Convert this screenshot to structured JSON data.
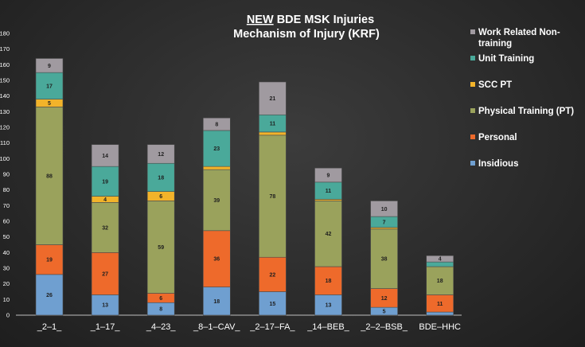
{
  "chart_data": {
    "type": "bar",
    "stacked": true,
    "title_emphasis": "NEW",
    "title_rest": " BDE MSK Injuries",
    "subtitle": "Mechanism of Injury (KRF)",
    "xlabel": "",
    "ylabel": "",
    "ylim": [
      0,
      180
    ],
    "ytick_step": 10,
    "grid": false,
    "legend_position": "right",
    "categories": [
      "_2–1_",
      "_1–17_",
      "_4–23_",
      "_8–1–CAV_",
      "_2–17–FA_",
      "_14–BEB_",
      "_2–2–BSB_",
      "BDE–HHC"
    ],
    "series": [
      {
        "name": "Insidious",
        "color": "#6f9fd0",
        "values": [
          26,
          13,
          8,
          18,
          15,
          13,
          5,
          2
        ],
        "labels": [
          "26",
          "13",
          "8",
          "18",
          "15",
          "13",
          "5",
          ""
        ]
      },
      {
        "name": "Personal",
        "color": "#ee6a2b",
        "values": [
          19,
          27,
          6,
          36,
          22,
          18,
          12,
          11
        ],
        "labels": [
          "19",
          "27",
          "6",
          "36",
          "22",
          "18",
          "12",
          "11"
        ]
      },
      {
        "name": "Physical Training (PT)",
        "color": "#9aa25c",
        "values": [
          88,
          32,
          59,
          39,
          78,
          42,
          38,
          18
        ],
        "labels": [
          "88",
          "32",
          "59",
          "39",
          "78",
          "42",
          "38",
          "18"
        ]
      },
      {
        "name": "SCC PT",
        "color": "#f2b32a",
        "values": [
          5,
          4,
          6,
          2,
          2,
          1,
          1,
          0
        ],
        "labels": [
          "5",
          "4",
          "6",
          "",
          "",
          "",
          "",
          ""
        ]
      },
      {
        "name": "Unit Training",
        "color": "#4aa99a",
        "values": [
          17,
          19,
          18,
          23,
          11,
          11,
          7,
          3
        ],
        "labels": [
          "17",
          "19",
          "18",
          "23",
          "11",
          "11",
          "7",
          ""
        ]
      },
      {
        "name": "Work Related Non-training",
        "color": "#a09aa0",
        "values": [
          9,
          14,
          12,
          8,
          21,
          9,
          10,
          4
        ],
        "labels": [
          "9",
          "14",
          "12",
          "8",
          "21",
          "9",
          "10",
          "4"
        ]
      }
    ]
  }
}
